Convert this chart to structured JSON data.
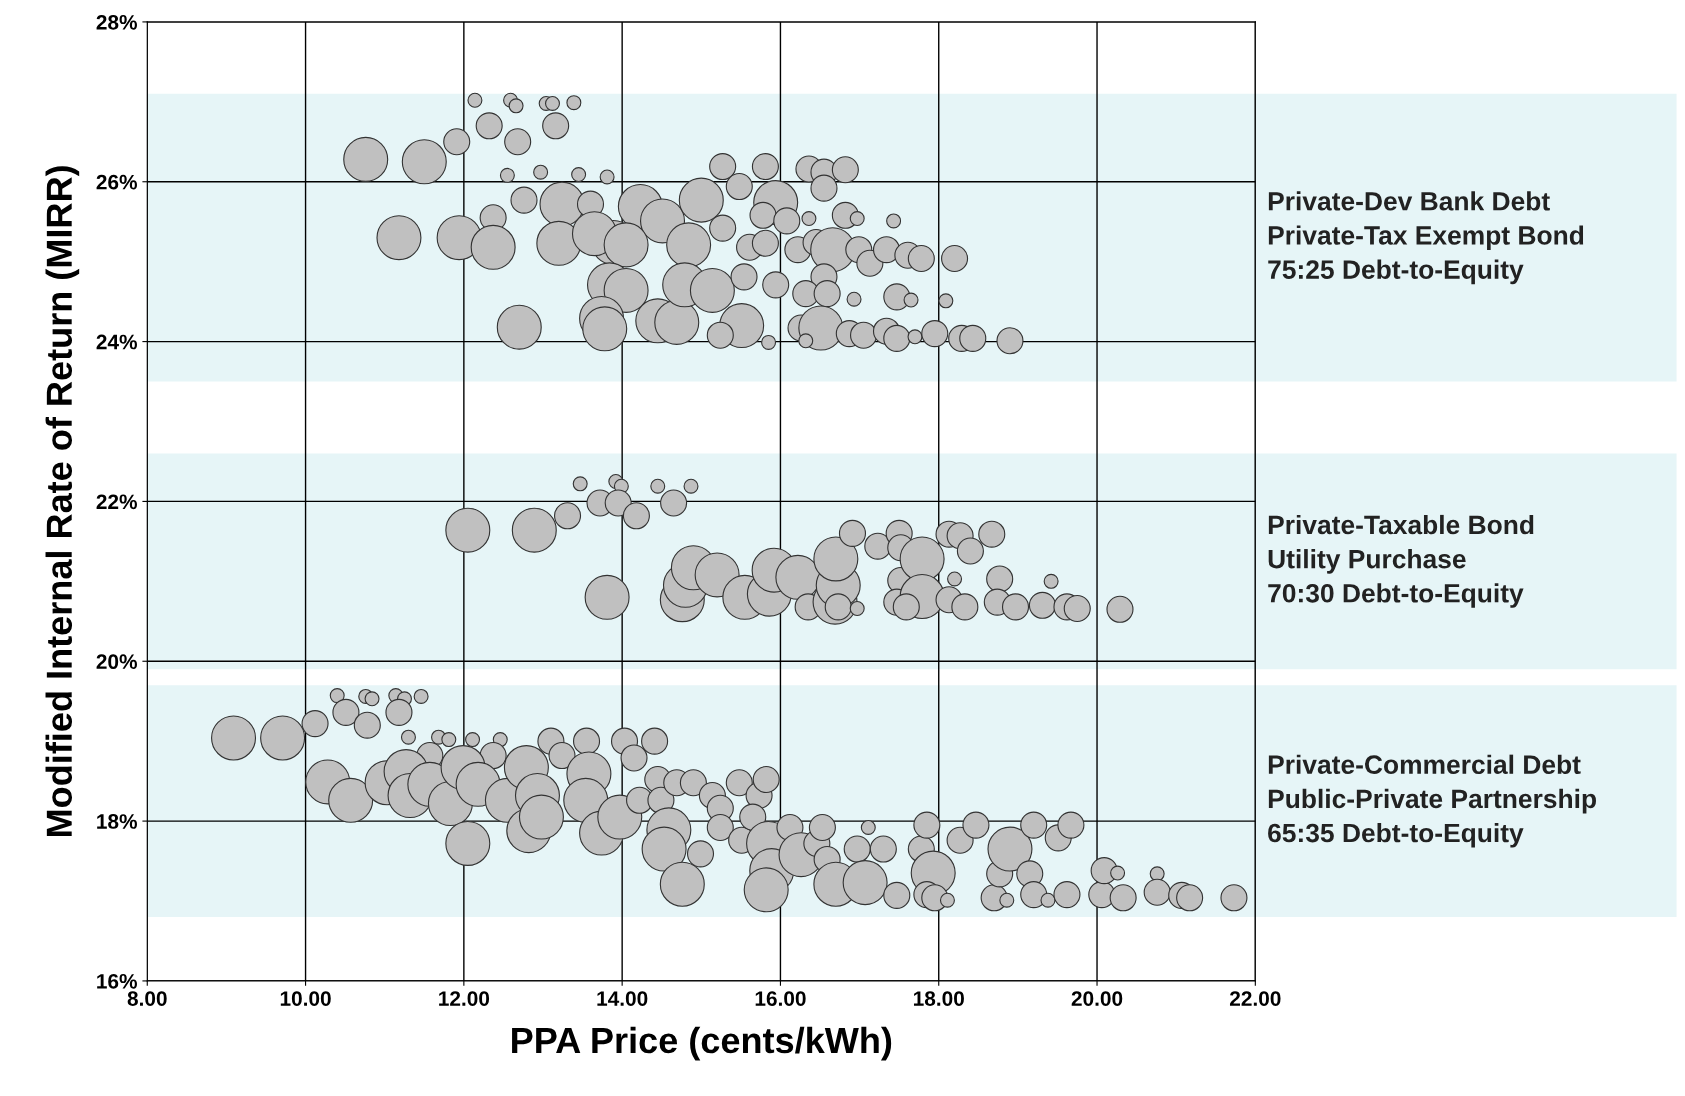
{
  "chart_data": {
    "type": "bubble",
    "xlabel": "PPA Price (cents/kWh)",
    "ylabel": "Modified Internal Rate of Return (MIRR)",
    "xlim": [
      8,
      22
    ],
    "xticks": [
      {
        "value": 8,
        "label": "8.00"
      },
      {
        "value": 10,
        "label": "10.00"
      },
      {
        "value": 12,
        "label": "12.00"
      },
      {
        "value": 14,
        "label": "14.00"
      },
      {
        "value": 16,
        "label": "16.00"
      },
      {
        "value": 18,
        "label": "18.00"
      },
      {
        "value": 20,
        "label": "20.00"
      },
      {
        "value": 22,
        "label": "22.00"
      }
    ],
    "ylim": [
      16,
      28
    ],
    "yticks": [
      {
        "value": 16,
        "label": "16%"
      },
      {
        "value": 18,
        "label": "18%"
      },
      {
        "value": 20,
        "label": "20%"
      },
      {
        "value": 22,
        "label": "22%"
      },
      {
        "value": 24,
        "label": "24%"
      },
      {
        "value": 26,
        "label": "26%"
      },
      {
        "value": 28,
        "label": "28%"
      }
    ],
    "grid": true,
    "bands": [
      {
        "axis": "y",
        "from": 23.5,
        "to": 27.1,
        "label": "Private-Dev Bank Debt\nPrivate-Tax Exempt Bond\n75:25 Debt-to-Equity",
        "color": "#e6f5f7"
      },
      {
        "axis": "y",
        "from": 19.9,
        "to": 22.6,
        "label": "Private-Taxable Bond\nUtility Purchase\n70:30 Debt-to-Equity",
        "color": "#e6f5f7"
      },
      {
        "axis": "y",
        "from": 16.8,
        "to": 19.7,
        "label": "Private-Commercial Debt\nPublic-Private Partnership\n65:35 Debt-to-Equity",
        "color": "#e6f5f7"
      }
    ],
    "series": [
      {
        "color": "#c0c0c0",
        "x": [
          12.14,
          12.59,
          12.66,
          13.04,
          13.12,
          13.39,
          12.32,
          13.16,
          12.68,
          11.91,
          10.76,
          11.5,
          12.55,
          12.97,
          13.45,
          13.81,
          12.76,
          12.37,
          11.18,
          11.94,
          12.37,
          13.24,
          13.2,
          13.6,
          14.23,
          14.51,
          13.89,
          13.65,
          14.05,
          13.84,
          14.05,
          12.7,
          13.74,
          13.78,
          14.45,
          14.69,
          15.0,
          14.84,
          14.79,
          15.14,
          15.27,
          15.48,
          15.81,
          15.94,
          15.78,
          16.08,
          15.27,
          15.61,
          15.81,
          16.22,
          15.54,
          15.94,
          15.51,
          15.24,
          15.85,
          16.36,
          16.55,
          16.82,
          16.55,
          16.36,
          16.82,
          16.97,
          17.43,
          16.45,
          16.66,
          16.99,
          17.13,
          17.34,
          17.61,
          17.78,
          18.2,
          16.55,
          16.32,
          16.59,
          16.93,
          17.47,
          17.65,
          18.09,
          16.26,
          16.51,
          16.87,
          17.05,
          17.34,
          17.47,
          17.7,
          17.95,
          18.29,
          18.43,
          18.9,
          16.32
        ],
        "values": [
          27.02,
          27.02,
          26.95,
          26.98,
          26.98,
          26.99,
          26.7,
          26.7,
          26.5,
          26.5,
          26.28,
          26.25,
          26.08,
          26.12,
          26.09,
          26.06,
          25.77,
          25.55,
          25.3,
          25.3,
          25.18,
          25.72,
          25.23,
          25.72,
          25.69,
          25.51,
          25.24,
          25.35,
          25.21,
          24.71,
          24.64,
          24.18,
          24.29,
          24.16,
          24.26,
          24.24,
          25.77,
          25.21,
          24.71,
          24.64,
          26.19,
          25.94,
          26.19,
          25.74,
          25.58,
          25.51,
          25.42,
          25.18,
          25.23,
          25.15,
          24.81,
          24.71,
          24.2,
          24.08,
          23.99,
          26.16,
          26.12,
          26.15,
          25.92,
          25.54,
          25.58,
          25.54,
          25.51,
          25.24,
          25.15,
          25.15,
          24.98,
          25.15,
          25.08,
          25.04,
          25.04,
          24.81,
          24.6,
          24.6,
          24.53,
          24.56,
          24.52,
          24.51,
          24.17,
          24.17,
          24.1,
          24.08,
          24.13,
          24.04,
          24.06,
          24.1,
          24.04,
          24.04,
          24.01,
          24.01
        ],
        "sizes": [
          0.1,
          0.1,
          0.1,
          0.1,
          0.1,
          0.1,
          0.35,
          0.35,
          0.35,
          0.35,
          1,
          1,
          0.1,
          0.1,
          0.1,
          0.1,
          0.35,
          0.35,
          1,
          1,
          1,
          1,
          1,
          0.35,
          1,
          1,
          1,
          1,
          1,
          1,
          1,
          1,
          1,
          1,
          1,
          1,
          1,
          1,
          1,
          1,
          0.35,
          0.35,
          0.35,
          1,
          0.35,
          0.35,
          0.35,
          0.35,
          0.35,
          0.35,
          0.35,
          0.35,
          1,
          0.35,
          0.1,
          0.35,
          0.35,
          0.35,
          0.35,
          0.1,
          0.35,
          0.1,
          0.1,
          0.35,
          1,
          0.35,
          0.35,
          0.35,
          0.35,
          0.35,
          0.35,
          0.35,
          0.35,
          0.35,
          0.1,
          0.35,
          0.1,
          0.1,
          0.35,
          1,
          0.35,
          0.35,
          0.35,
          0.35,
          0.1,
          0.35,
          0.35,
          0.35,
          0.35,
          0.1
        ]
      },
      {
        "color": "#c0c0c0",
        "x": [
          13.47,
          13.92,
          13.99,
          14.45,
          14.87,
          13.72,
          13.95,
          14.65,
          14.18,
          13.31,
          12.05,
          12.89,
          13.81,
          14.76,
          14.8,
          14.9,
          15.2,
          15.55,
          15.86,
          15.92,
          16.22,
          16.35,
          16.69,
          16.73,
          16.7,
          16.73,
          16.97,
          16.91,
          17.23,
          17.5,
          17.52,
          17.52,
          17.47,
          17.79,
          17.79,
          17.59,
          18.13,
          18.27,
          18.4,
          18.2,
          18.13,
          18.33,
          18.67,
          18.77,
          18.74,
          18.97,
          19.42,
          19.31,
          19.62,
          19.75,
          20.29
        ],
        "values": [
          22.22,
          22.25,
          22.19,
          22.19,
          22.19,
          21.98,
          21.98,
          21.98,
          21.82,
          21.82,
          21.64,
          21.64,
          20.8,
          20.77,
          20.95,
          21.17,
          21.08,
          20.8,
          20.84,
          21.14,
          21.05,
          20.68,
          20.74,
          20.95,
          21.28,
          20.68,
          20.66,
          21.6,
          21.44,
          21.6,
          21.42,
          21.01,
          20.74,
          21.28,
          20.81,
          20.68,
          21.59,
          21.57,
          21.38,
          21.03,
          20.77,
          20.68,
          21.59,
          21.03,
          20.74,
          20.68,
          21.0,
          20.7,
          20.68,
          20.66,
          20.65
        ],
        "sizes": [
          0.1,
          0.1,
          0.1,
          0.1,
          0.1,
          0.35,
          0.35,
          0.35,
          0.35,
          0.35,
          1,
          1,
          1,
          1,
          1,
          1,
          1,
          1,
          1,
          1,
          1,
          0.35,
          1,
          1,
          1,
          0.35,
          0.1,
          0.35,
          0.35,
          0.35,
          0.35,
          0.35,
          0.35,
          1,
          1,
          0.35,
          0.35,
          0.35,
          0.35,
          0.1,
          0.35,
          0.35,
          0.35,
          0.35,
          0.35,
          0.35,
          0.1,
          0.35,
          0.35,
          0.35,
          0.35
        ]
      },
      {
        "color": "#c0c0c0",
        "x": [
          10.4,
          10.76,
          10.84,
          11.14,
          11.25,
          11.46,
          10.51,
          11.18,
          10.12,
          10.78,
          9.09,
          9.71,
          11.3,
          11.68,
          11.81,
          12.11,
          12.46,
          11.57,
          12.37,
          13.1,
          13.55,
          14.03,
          14.41,
          14.15,
          13.24,
          10.28,
          10.57,
          11.03,
          11.27,
          11.32,
          11.57,
          11.83,
          11.99,
          12.18,
          12.55,
          12.79,
          12.93,
          12.82,
          12.98,
          13.58,
          13.54,
          13.74,
          13.97,
          12.05,
          14.22,
          14.45,
          14.49,
          14.69,
          14.9,
          15.14,
          15.24,
          15.48,
          15.73,
          15.82,
          14.59,
          14.53,
          14.76,
          14.99,
          15.24,
          15.51,
          15.65,
          15.85,
          15.89,
          15.82,
          16.12,
          16.26,
          16.46,
          16.59,
          16.53,
          16.7,
          16.97,
          17.07,
          17.11,
          17.3,
          17.47,
          17.78,
          17.85,
          17.93,
          17.85,
          17.95,
          18.11,
          18.27,
          18.47,
          18.7,
          18.77,
          18.9,
          18.86,
          19.15,
          19.2,
          19.2,
          19.51,
          19.67,
          19.38,
          19.62,
          20.06,
          20.09,
          20.26,
          20.33,
          20.76,
          20.76,
          21.07,
          21.17,
          21.73
        ],
        "values": [
          19.57,
          19.56,
          19.53,
          19.57,
          19.53,
          19.56,
          19.36,
          19.36,
          19.22,
          19.2,
          19.04,
          19.04,
          19.05,
          19.05,
          19.02,
          19.02,
          19.02,
          18.82,
          18.82,
          19.0,
          19.0,
          19.0,
          19.0,
          18.79,
          18.82,
          18.49,
          18.26,
          18.48,
          18.62,
          18.32,
          18.46,
          18.22,
          18.67,
          18.46,
          18.26,
          18.67,
          18.32,
          17.88,
          18.05,
          18.59,
          18.26,
          17.85,
          18.05,
          17.72,
          18.26,
          18.52,
          18.26,
          18.48,
          18.48,
          18.32,
          18.16,
          18.48,
          18.32,
          18.52,
          17.89,
          17.65,
          17.21,
          17.59,
          17.92,
          17.76,
          18.05,
          17.72,
          17.38,
          17.14,
          17.92,
          17.58,
          17.72,
          17.52,
          17.92,
          17.21,
          17.65,
          17.23,
          17.92,
          17.65,
          17.07,
          17.65,
          17.95,
          17.35,
          17.08,
          17.04,
          17.01,
          17.76,
          17.95,
          17.04,
          17.34,
          17.65,
          17.01,
          17.34,
          17.08,
          17.95,
          17.79,
          17.95,
          17.01,
          17.08,
          17.08,
          17.38,
          17.35,
          17.04,
          17.34,
          17.11,
          17.07,
          17.04,
          17.04
        ],
        "sizes": [
          0.1,
          0.1,
          0.1,
          0.1,
          0.1,
          0.1,
          0.35,
          0.35,
          0.35,
          0.35,
          1,
          1,
          0.1,
          0.1,
          0.1,
          0.1,
          0.1,
          0.35,
          0.35,
          0.35,
          0.35,
          0.35,
          0.35,
          0.35,
          0.35,
          1,
          1,
          1,
          1,
          1,
          1,
          1,
          1,
          1,
          1,
          1,
          1,
          1,
          1,
          1,
          1,
          1,
          1,
          1,
          0.35,
          0.35,
          0.35,
          0.35,
          0.35,
          0.35,
          0.35,
          0.35,
          0.35,
          0.35,
          1,
          1,
          1,
          0.35,
          0.35,
          0.35,
          0.35,
          1,
          1,
          1,
          0.35,
          1,
          0.35,
          0.35,
          0.35,
          1,
          0.35,
          1,
          0.1,
          0.35,
          0.35,
          0.35,
          0.35,
          1,
          0.35,
          0.35,
          0.1,
          0.35,
          0.35,
          0.35,
          0.35,
          1,
          0.1,
          0.35,
          0.35,
          0.35,
          0.35,
          0.35,
          0.1,
          0.35,
          0.35,
          0.35,
          0.1,
          0.35,
          0.1,
          0.35,
          0.35,
          0.35,
          0.35
        ]
      }
    ]
  }
}
